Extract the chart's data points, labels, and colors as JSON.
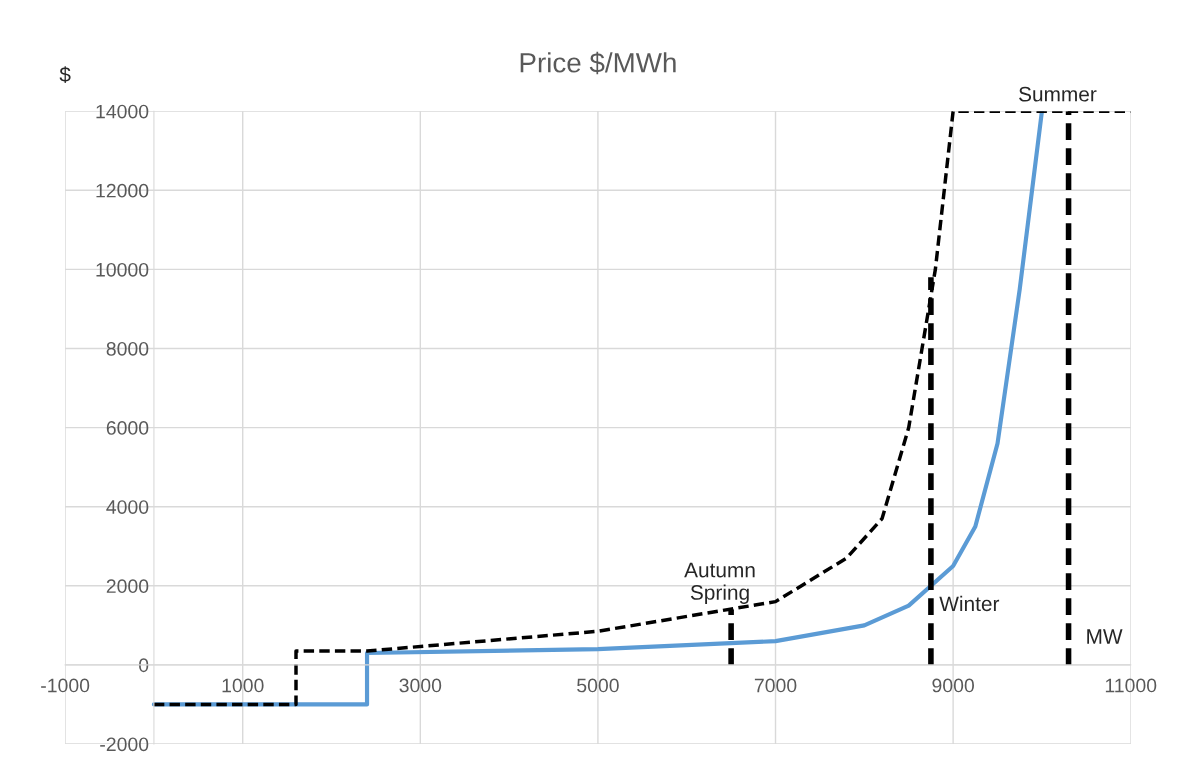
{
  "chart_data": {
    "type": "line",
    "title": "Price $/MWh",
    "xlabel": "MW",
    "ylabel": "$",
    "series": [
      {
        "color": "#5b9bd5",
        "line_style": "solid",
        "x": [
          0,
          2400,
          2400,
          5000,
          7000,
          8000,
          8500,
          9000,
          9250,
          9500,
          9750,
          10000
        ],
        "values": [
          -1000,
          -1000,
          300,
          400,
          600,
          1000,
          1500,
          2500,
          3500,
          5600,
          9500,
          14000
        ]
      },
      {
        "color": "#000000",
        "line_style": "dashed",
        "x": [
          0,
          1600,
          1600,
          2400,
          5000,
          7000,
          7800,
          8200,
          8500,
          8800,
          9000,
          11000
        ],
        "values": [
          -1000,
          -1000,
          350,
          350,
          850,
          1600,
          2700,
          3700,
          6000,
          10000,
          14000,
          14000
        ]
      },
      {
        "color": "#000000",
        "line_style": "dashed",
        "x": [
          6500,
          6500
        ],
        "values": [
          0,
          1400
        ]
      },
      {
        "color": "#000000",
        "line_style": "dashed",
        "x": [
          8750,
          8750
        ],
        "values": [
          0,
          9800
        ]
      },
      {
        "color": "#000000",
        "line_style": "dashed",
        "x": [
          10300,
          10300
        ],
        "values": [
          0,
          14000
        ]
      }
    ],
    "annotations": [
      {
        "text": "Autumn\nSpring",
        "x": 6500,
        "y": 1400
      },
      {
        "text": "Winter",
        "x": 8750,
        "y": 1500
      },
      {
        "text": "Summer",
        "x": 10300,
        "y": 14000
      }
    ],
    "xlim": [
      -1000,
      11000
    ],
    "xticks": [
      -1000,
      1000,
      3000,
      5000,
      7000,
      9000,
      11000
    ],
    "ylim": [
      -2000,
      14000
    ],
    "yticks": [
      -2000,
      0,
      2000,
      4000,
      6000,
      8000,
      10000,
      12000,
      14000
    ],
    "grid": true,
    "marker": "none"
  }
}
